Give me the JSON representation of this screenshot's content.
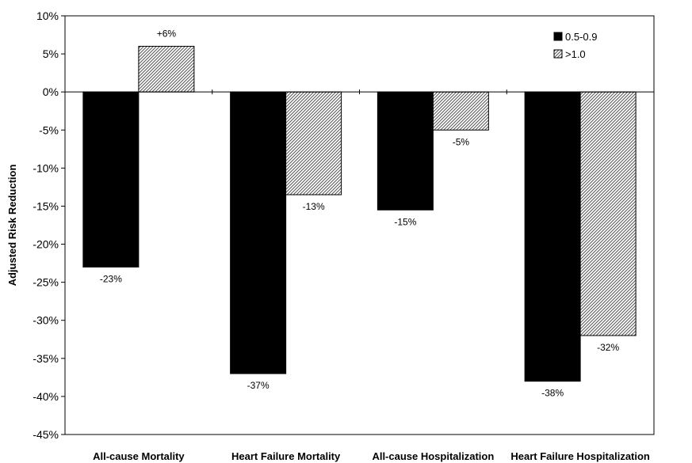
{
  "chart_data": {
    "type": "bar",
    "categories": [
      "All-cause Mortality",
      "Heart Failure Mortality",
      "All-cause Hospitalization",
      "Heart Failure Hospitalization"
    ],
    "series": [
      {
        "name": "0.5-0.9",
        "values": [
          -23,
          -37,
          -15.5,
          -38
        ],
        "labels": [
          "-23%",
          "-37%",
          "-15%",
          "-38%"
        ],
        "color": "#000000",
        "fill_style": "solid"
      },
      {
        "name": ">1.0",
        "values": [
          6,
          -13.5,
          -5,
          -32
        ],
        "labels": [
          "+6%",
          "-13%",
          "-5%",
          "-32%"
        ],
        "color": "#c8c8c8",
        "fill_style": "diagonal-hatch"
      }
    ],
    "ylabel": "Adjusted Risk Reduction",
    "xlabel": "",
    "ylim": [
      -45,
      10
    ],
    "yticks": [
      10,
      5,
      0,
      -5,
      -10,
      -15,
      -20,
      -25,
      -30,
      -35,
      -40,
      -45
    ],
    "ytick_labels": [
      "10%",
      "5%",
      "0%",
      "-5%",
      "-10%",
      "-15%",
      "-20%",
      "-25%",
      "-30%",
      "-35%",
      "-40%",
      "-45%"
    ],
    "legend_position": "top-right",
    "grid": false
  }
}
